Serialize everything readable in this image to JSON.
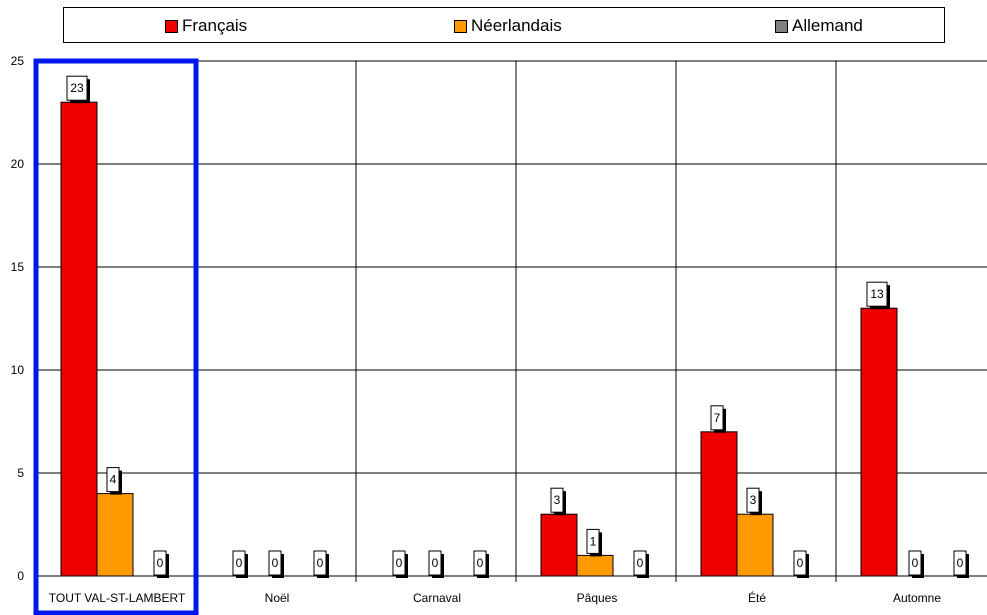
{
  "colors": {
    "Français": "#ee0000",
    "Néerlandais": "#ff9900",
    "Allemand": "#808080",
    "highlight": "#0018ee"
  },
  "legend": {
    "items": [
      "Français",
      "Néerlandais",
      "Allemand"
    ],
    "placement": "top"
  },
  "chart_data": {
    "type": "bar",
    "categories": [
      "TOUT VAL-ST-LAMBERT",
      "Noël",
      "Carnaval",
      "Pâques",
      "Été",
      "Automne"
    ],
    "series": [
      {
        "name": "Français",
        "values": [
          23,
          0,
          0,
          3,
          7,
          13
        ]
      },
      {
        "name": "Néerlandais",
        "values": [
          4,
          0,
          0,
          1,
          3,
          0
        ]
      },
      {
        "name": "Allemand",
        "values": [
          0,
          0,
          0,
          0,
          0,
          0
        ]
      }
    ],
    "ylim": [
      0,
      25
    ],
    "yticks": [
      "0",
      "5",
      "10",
      "15",
      "20",
      "25"
    ],
    "grid": true,
    "highlighted_category": "TOUT VAL-ST-LAMBERT"
  }
}
